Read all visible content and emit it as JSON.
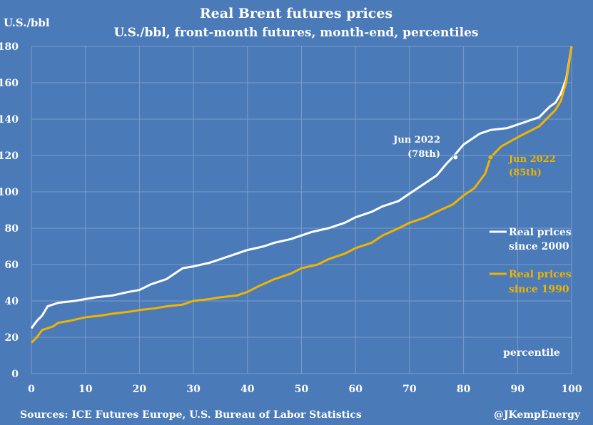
{
  "chart_data": {
    "type": "line",
    "title": "Real Brent futures prices",
    "subtitle": "U.S./bbl, front-month futures, month-end, percentiles",
    "ylabel": "U.S./bbl",
    "xlabel": "percentile",
    "xlim": [
      0,
      100
    ],
    "ylim": [
      0,
      180
    ],
    "xticks": [
      0,
      10,
      20,
      30,
      40,
      50,
      60,
      70,
      80,
      90,
      100
    ],
    "yticks": [
      0,
      20,
      40,
      60,
      80,
      100,
      120,
      140,
      160,
      180
    ],
    "grid": true,
    "legend_position": "right",
    "series": [
      {
        "name": "Real prices since 2000",
        "color": "#ffffff",
        "x": [
          0,
          1,
          2,
          3,
          4,
          5,
          8,
          10,
          12,
          15,
          18,
          20,
          22,
          25,
          28,
          30,
          33,
          35,
          38,
          40,
          43,
          45,
          48,
          50,
          52,
          55,
          58,
          60,
          63,
          65,
          68,
          70,
          72,
          75,
          77,
          78,
          80,
          83,
          85,
          88,
          90,
          92,
          94,
          95,
          96,
          97,
          98,
          99,
          100
        ],
        "y": [
          25,
          29,
          32,
          37,
          38,
          39,
          40,
          41,
          42,
          43,
          45,
          46,
          49,
          52,
          58,
          59,
          61,
          63,
          66,
          68,
          70,
          72,
          74,
          76,
          78,
          80,
          83,
          86,
          89,
          92,
          95,
          99,
          103,
          109,
          116,
          119,
          126,
          132,
          134,
          135,
          137,
          139,
          141,
          144,
          147,
          149,
          154,
          162,
          180
        ]
      },
      {
        "name": "Real prices since 1990",
        "color": "#f0b400",
        "x": [
          0,
          1,
          2,
          3,
          4,
          5,
          7,
          10,
          13,
          15,
          18,
          20,
          23,
          25,
          28,
          30,
          33,
          35,
          38,
          40,
          42,
          45,
          48,
          50,
          53,
          55,
          58,
          60,
          63,
          65,
          68,
          70,
          73,
          75,
          78,
          80,
          82,
          84,
          85,
          87,
          90,
          92,
          94,
          95,
          96,
          97,
          98,
          99,
          100
        ],
        "y": [
          17,
          20,
          24,
          25,
          26,
          28,
          29,
          31,
          32,
          33,
          34,
          35,
          36,
          37,
          38,
          40,
          41,
          42,
          43,
          45,
          48,
          52,
          55,
          58,
          60,
          63,
          66,
          69,
          72,
          76,
          80,
          83,
          86,
          89,
          93,
          98,
          102,
          110,
          119,
          125,
          130,
          133,
          136,
          139,
          142,
          145,
          150,
          160,
          180
        ]
      }
    ],
    "annotations": [
      {
        "label": "Jun 2022",
        "sublabel": "(78th)",
        "x": 78.5,
        "y": 119,
        "color": "#ffffff"
      },
      {
        "label": "Jun 2022",
        "sublabel": "(85th)",
        "x": 85,
        "y": 119,
        "color": "#f0b400"
      }
    ]
  },
  "legend": {
    "series_2000": {
      "line1": "Real prices",
      "line2": "since 2000"
    },
    "series_1990": {
      "line1": "Real prices",
      "line2": "since 1990"
    }
  },
  "footer": {
    "sources": "Sources: ICE Futures Europe, U.S. Bureau of Labor Statistics",
    "credit": "@JKempEnergy"
  },
  "colors": {
    "background": "#4a7ab8",
    "grid": "#7a9ccc",
    "white_series": "#ffffff",
    "gold_series": "#f0b400"
  }
}
